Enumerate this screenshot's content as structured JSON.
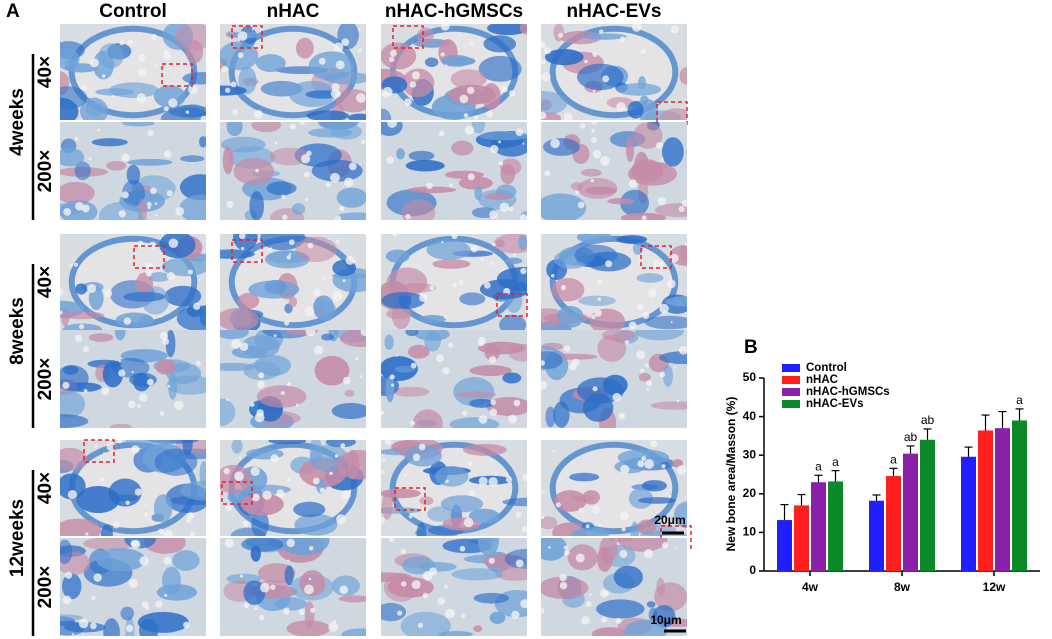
{
  "panel_a": {
    "label": "A",
    "columns": [
      "Control",
      "nHAC",
      "nHAC-hGMSCs",
      "nHAC-EVs"
    ],
    "rows": [
      {
        "time": "4weeks",
        "magnifications": [
          "40×",
          "200×"
        ]
      },
      {
        "time": "8weeks",
        "magnifications": [
          "40×",
          "200×"
        ]
      },
      {
        "time": "12weeks",
        "magnifications": [
          "40×",
          "200×"
        ]
      }
    ],
    "scale_bars": [
      "20μm",
      "10μm"
    ]
  },
  "chart_data": {
    "type": "bar",
    "panel_label": "B",
    "y_label": "New bone area/Masson (%)",
    "categories": [
      "4w",
      "8w",
      "12w"
    ],
    "series": [
      {
        "name": "Control",
        "color": "#1f1fff",
        "values": [
          13.2,
          18.2,
          29.6
        ],
        "errors": [
          4,
          1.5,
          2.5
        ],
        "annotations": [
          null,
          null,
          null
        ]
      },
      {
        "name": "nHAC",
        "color": "#ff1f1f",
        "values": [
          17,
          24.6,
          36.4
        ],
        "errors": [
          2.8,
          2,
          4
        ],
        "annotations": [
          null,
          "a",
          null
        ]
      },
      {
        "name": "nHAC-hGMSCs",
        "color": "#8a1fa8",
        "values": [
          23,
          30.4,
          37
        ],
        "errors": [
          1.8,
          2,
          4.3
        ],
        "annotations": [
          "a",
          "ab",
          null
        ]
      },
      {
        "name": "nHAC-EVs",
        "color": "#0c8a2a",
        "values": [
          23.2,
          34,
          39
        ],
        "errors": [
          2.8,
          2.8,
          3
        ],
        "annotations": [
          "a",
          "ab",
          "a"
        ]
      }
    ],
    "ylim": [
      0,
      50
    ],
    "yticks": [
      0,
      10,
      20,
      30,
      40,
      50
    ],
    "grid": false,
    "legend": "top-left"
  }
}
